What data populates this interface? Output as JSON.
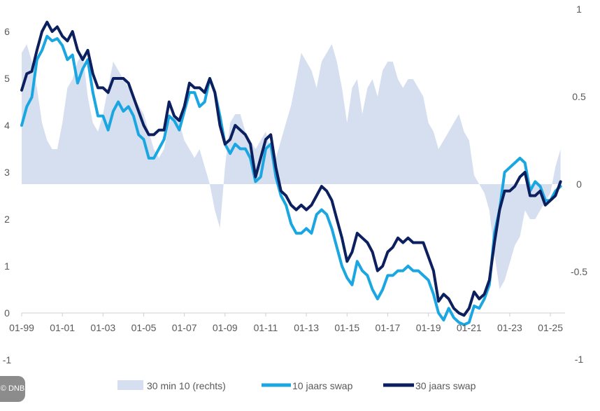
{
  "badge": "© DNB",
  "chart_data": {
    "type": "line",
    "title": "",
    "xlabel": "",
    "ylabel": "",
    "x_tick_labels": [
      "01-99",
      "01-01",
      "01-03",
      "01-05",
      "01-07",
      "01-09",
      "01-11",
      "01-13",
      "01-15",
      "01-17",
      "01-19",
      "01-21",
      "01-23",
      "01-25"
    ],
    "y_left_ticks": [
      "6",
      "5",
      "4",
      "3",
      "2",
      "1",
      "0",
      "-1"
    ],
    "y_right_ticks": [
      "1",
      "0.5",
      "0",
      "-0.5",
      "-1"
    ],
    "ylim_left": [
      -1,
      6.5
    ],
    "ylim_right": [
      -1,
      1
    ],
    "grid": false,
    "legend_position": "bottom",
    "colors": {
      "spread": "#d6dff0",
      "swap10": "#1aa7e1",
      "swap30": "#0c1f5e"
    },
    "x": [
      "1999-01",
      "1999-04",
      "1999-07",
      "1999-10",
      "2000-01",
      "2000-04",
      "2000-07",
      "2000-10",
      "2001-01",
      "2001-04",
      "2001-07",
      "2001-10",
      "2002-01",
      "2002-04",
      "2002-07",
      "2002-10",
      "2003-01",
      "2003-04",
      "2003-07",
      "2003-10",
      "2004-01",
      "2004-04",
      "2004-07",
      "2004-10",
      "2005-01",
      "2005-04",
      "2005-07",
      "2005-10",
      "2006-01",
      "2006-04",
      "2006-07",
      "2006-10",
      "2007-01",
      "2007-04",
      "2007-07",
      "2007-10",
      "2008-01",
      "2008-04",
      "2008-07",
      "2008-10",
      "2009-01",
      "2009-04",
      "2009-07",
      "2009-10",
      "2010-01",
      "2010-04",
      "2010-07",
      "2010-10",
      "2011-01",
      "2011-04",
      "2011-07",
      "2011-10",
      "2012-01",
      "2012-04",
      "2012-07",
      "2012-10",
      "2013-01",
      "2013-04",
      "2013-07",
      "2013-10",
      "2014-01",
      "2014-04",
      "2014-07",
      "2014-10",
      "2015-01",
      "2015-04",
      "2015-07",
      "2015-10",
      "2016-01",
      "2016-04",
      "2016-07",
      "2016-10",
      "2017-01",
      "2017-04",
      "2017-07",
      "2017-10",
      "2018-01",
      "2018-04",
      "2018-07",
      "2018-10",
      "2019-01",
      "2019-04",
      "2019-07",
      "2019-10",
      "2020-01",
      "2020-04",
      "2020-07",
      "2020-10",
      "2021-01",
      "2021-04",
      "2021-07",
      "2021-10",
      "2022-01",
      "2022-04",
      "2022-07",
      "2022-10",
      "2023-01",
      "2023-04",
      "2023-07",
      "2023-10",
      "2024-01",
      "2024-04",
      "2024-07",
      "2024-10",
      "2025-01",
      "2025-04",
      "2025-07"
    ],
    "series": [
      {
        "name": "30 min 10 (rechts)",
        "type": "area",
        "axis": "right",
        "values": [
          0.75,
          0.8,
          0.7,
          0.55,
          0.35,
          0.25,
          0.2,
          0.2,
          0.35,
          0.55,
          0.6,
          0.7,
          0.75,
          0.5,
          0.35,
          0.3,
          0.4,
          0.55,
          0.7,
          0.65,
          0.6,
          0.55,
          0.5,
          0.45,
          0.4,
          0.3,
          0.2,
          0.15,
          0.2,
          0.35,
          0.4,
          0.35,
          0.25,
          0.2,
          0.15,
          0.2,
          0.1,
          0.0,
          -0.15,
          -0.25,
          0.1,
          0.35,
          0.4,
          0.4,
          0.3,
          0.25,
          0.2,
          0.25,
          0.3,
          0.2,
          0.15,
          0.25,
          0.35,
          0.45,
          0.6,
          0.75,
          0.7,
          0.65,
          0.55,
          0.7,
          0.75,
          0.8,
          0.7,
          0.55,
          0.35,
          0.55,
          0.6,
          0.4,
          0.55,
          0.6,
          0.5,
          0.65,
          0.7,
          0.7,
          0.6,
          0.55,
          0.6,
          0.6,
          0.55,
          0.5,
          0.35,
          0.3,
          0.2,
          0.25,
          0.3,
          0.35,
          0.4,
          0.3,
          0.25,
          0.05,
          0.0,
          -0.05,
          -0.15,
          -0.4,
          -0.6,
          -0.55,
          -0.45,
          -0.35,
          -0.3,
          -0.15,
          -0.2,
          -0.2,
          -0.15,
          -0.1,
          -0.05,
          0.1,
          0.2
        ]
      },
      {
        "name": "10 jaars swap",
        "type": "line",
        "axis": "left",
        "values": [
          4.0,
          4.4,
          4.6,
          5.4,
          5.6,
          5.9,
          5.8,
          5.85,
          5.7,
          5.4,
          5.5,
          4.9,
          5.2,
          5.4,
          4.7,
          4.2,
          4.2,
          3.9,
          4.3,
          4.5,
          4.3,
          4.4,
          4.2,
          3.8,
          3.7,
          3.3,
          3.3,
          3.5,
          3.7,
          4.2,
          4.1,
          3.9,
          4.3,
          4.7,
          4.7,
          4.4,
          4.5,
          5.0,
          4.7,
          4.2,
          3.6,
          3.4,
          3.6,
          3.5,
          3.5,
          3.3,
          2.8,
          2.9,
          3.5,
          3.6,
          2.9,
          2.5,
          2.3,
          1.9,
          1.7,
          1.7,
          1.8,
          1.7,
          2.1,
          2.2,
          2.1,
          1.8,
          1.4,
          1.0,
          0.75,
          0.6,
          1.1,
          0.9,
          0.8,
          0.5,
          0.3,
          0.5,
          0.8,
          0.8,
          0.9,
          0.9,
          1.0,
          0.9,
          0.9,
          0.8,
          0.7,
          0.4,
          0.0,
          -0.15,
          0.1,
          -0.1,
          -0.2,
          -0.25,
          -0.2,
          0.15,
          0.1,
          0.3,
          0.6,
          1.7,
          2.2,
          3.0,
          3.1,
          3.2,
          3.3,
          3.2,
          2.6,
          2.8,
          2.7,
          2.4,
          2.4,
          2.6,
          2.7
        ]
      },
      {
        "name": "30 jaars swap",
        "type": "line",
        "axis": "left",
        "values": [
          4.75,
          5.1,
          5.15,
          5.6,
          6.0,
          6.2,
          6.0,
          6.1,
          5.9,
          5.8,
          6.0,
          5.6,
          5.4,
          5.6,
          5.1,
          4.8,
          4.8,
          4.7,
          5.0,
          5.0,
          5.0,
          4.9,
          4.6,
          4.3,
          4.0,
          3.8,
          3.8,
          3.9,
          3.9,
          4.5,
          4.2,
          4.1,
          4.4,
          4.9,
          4.8,
          4.8,
          4.7,
          5.0,
          4.7,
          4.0,
          3.6,
          3.7,
          4.0,
          3.9,
          3.8,
          3.6,
          2.9,
          3.3,
          3.7,
          3.8,
          3.1,
          2.6,
          2.5,
          2.3,
          2.2,
          2.3,
          2.2,
          2.3,
          2.5,
          2.7,
          2.6,
          2.4,
          2.0,
          1.6,
          1.1,
          1.3,
          1.7,
          1.6,
          1.5,
          1.3,
          0.9,
          1.0,
          1.3,
          1.4,
          1.6,
          1.5,
          1.6,
          1.5,
          1.5,
          1.5,
          1.2,
          0.9,
          0.25,
          0.4,
          0.3,
          0.1,
          0.0,
          -0.05,
          0.1,
          0.45,
          0.3,
          0.4,
          0.7,
          1.5,
          2.2,
          2.6,
          2.6,
          2.7,
          2.9,
          3.0,
          2.5,
          2.5,
          2.6,
          2.3,
          2.4,
          2.5,
          2.8
        ]
      }
    ]
  }
}
